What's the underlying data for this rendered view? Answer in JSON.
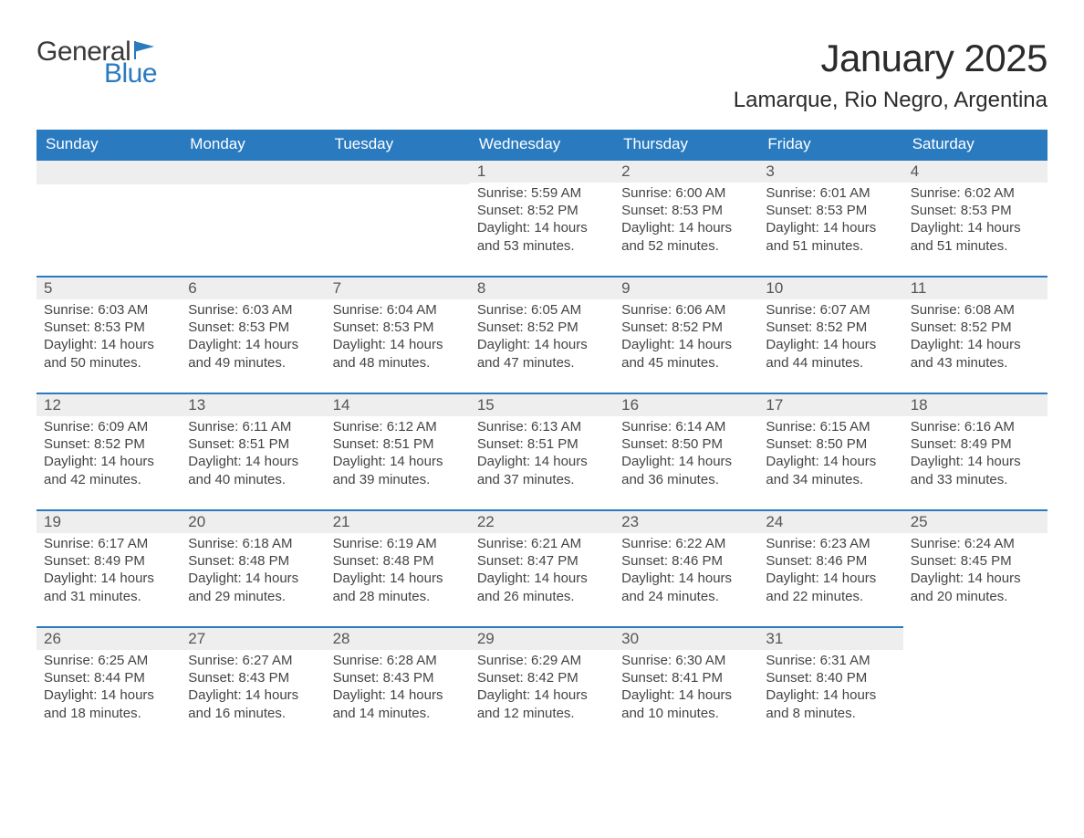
{
  "logo": {
    "text_general": "General",
    "text_blue": "Blue",
    "accent_color": "#2a7ac0"
  },
  "title": "January 2025",
  "location": "Lamarque, Rio Negro, Argentina",
  "colors": {
    "header_bg": "#2a7ac0",
    "header_text": "#ffffff",
    "daynum_bg": "#eeeeee",
    "daynum_border": "#2a7ac0",
    "body_text": "#444444",
    "page_bg": "#ffffff"
  },
  "typography": {
    "title_fontsize": 42,
    "location_fontsize": 24,
    "header_fontsize": 17,
    "daynum_fontsize": 17,
    "body_fontsize": 15
  },
  "weekdays": [
    "Sunday",
    "Monday",
    "Tuesday",
    "Wednesday",
    "Thursday",
    "Friday",
    "Saturday"
  ],
  "weeks": [
    [
      null,
      null,
      null,
      {
        "n": "1",
        "sunrise": "Sunrise: 5:59 AM",
        "sunset": "Sunset: 8:52 PM",
        "daylight": "Daylight: 14 hours and 53 minutes."
      },
      {
        "n": "2",
        "sunrise": "Sunrise: 6:00 AM",
        "sunset": "Sunset: 8:53 PM",
        "daylight": "Daylight: 14 hours and 52 minutes."
      },
      {
        "n": "3",
        "sunrise": "Sunrise: 6:01 AM",
        "sunset": "Sunset: 8:53 PM",
        "daylight": "Daylight: 14 hours and 51 minutes."
      },
      {
        "n": "4",
        "sunrise": "Sunrise: 6:02 AM",
        "sunset": "Sunset: 8:53 PM",
        "daylight": "Daylight: 14 hours and 51 minutes."
      }
    ],
    [
      {
        "n": "5",
        "sunrise": "Sunrise: 6:03 AM",
        "sunset": "Sunset: 8:53 PM",
        "daylight": "Daylight: 14 hours and 50 minutes."
      },
      {
        "n": "6",
        "sunrise": "Sunrise: 6:03 AM",
        "sunset": "Sunset: 8:53 PM",
        "daylight": "Daylight: 14 hours and 49 minutes."
      },
      {
        "n": "7",
        "sunrise": "Sunrise: 6:04 AM",
        "sunset": "Sunset: 8:53 PM",
        "daylight": "Daylight: 14 hours and 48 minutes."
      },
      {
        "n": "8",
        "sunrise": "Sunrise: 6:05 AM",
        "sunset": "Sunset: 8:52 PM",
        "daylight": "Daylight: 14 hours and 47 minutes."
      },
      {
        "n": "9",
        "sunrise": "Sunrise: 6:06 AM",
        "sunset": "Sunset: 8:52 PM",
        "daylight": "Daylight: 14 hours and 45 minutes."
      },
      {
        "n": "10",
        "sunrise": "Sunrise: 6:07 AM",
        "sunset": "Sunset: 8:52 PM",
        "daylight": "Daylight: 14 hours and 44 minutes."
      },
      {
        "n": "11",
        "sunrise": "Sunrise: 6:08 AM",
        "sunset": "Sunset: 8:52 PM",
        "daylight": "Daylight: 14 hours and 43 minutes."
      }
    ],
    [
      {
        "n": "12",
        "sunrise": "Sunrise: 6:09 AM",
        "sunset": "Sunset: 8:52 PM",
        "daylight": "Daylight: 14 hours and 42 minutes."
      },
      {
        "n": "13",
        "sunrise": "Sunrise: 6:11 AM",
        "sunset": "Sunset: 8:51 PM",
        "daylight": "Daylight: 14 hours and 40 minutes."
      },
      {
        "n": "14",
        "sunrise": "Sunrise: 6:12 AM",
        "sunset": "Sunset: 8:51 PM",
        "daylight": "Daylight: 14 hours and 39 minutes."
      },
      {
        "n": "15",
        "sunrise": "Sunrise: 6:13 AM",
        "sunset": "Sunset: 8:51 PM",
        "daylight": "Daylight: 14 hours and 37 minutes."
      },
      {
        "n": "16",
        "sunrise": "Sunrise: 6:14 AM",
        "sunset": "Sunset: 8:50 PM",
        "daylight": "Daylight: 14 hours and 36 minutes."
      },
      {
        "n": "17",
        "sunrise": "Sunrise: 6:15 AM",
        "sunset": "Sunset: 8:50 PM",
        "daylight": "Daylight: 14 hours and 34 minutes."
      },
      {
        "n": "18",
        "sunrise": "Sunrise: 6:16 AM",
        "sunset": "Sunset: 8:49 PM",
        "daylight": "Daylight: 14 hours and 33 minutes."
      }
    ],
    [
      {
        "n": "19",
        "sunrise": "Sunrise: 6:17 AM",
        "sunset": "Sunset: 8:49 PM",
        "daylight": "Daylight: 14 hours and 31 minutes."
      },
      {
        "n": "20",
        "sunrise": "Sunrise: 6:18 AM",
        "sunset": "Sunset: 8:48 PM",
        "daylight": "Daylight: 14 hours and 29 minutes."
      },
      {
        "n": "21",
        "sunrise": "Sunrise: 6:19 AM",
        "sunset": "Sunset: 8:48 PM",
        "daylight": "Daylight: 14 hours and 28 minutes."
      },
      {
        "n": "22",
        "sunrise": "Sunrise: 6:21 AM",
        "sunset": "Sunset: 8:47 PM",
        "daylight": "Daylight: 14 hours and 26 minutes."
      },
      {
        "n": "23",
        "sunrise": "Sunrise: 6:22 AM",
        "sunset": "Sunset: 8:46 PM",
        "daylight": "Daylight: 14 hours and 24 minutes."
      },
      {
        "n": "24",
        "sunrise": "Sunrise: 6:23 AM",
        "sunset": "Sunset: 8:46 PM",
        "daylight": "Daylight: 14 hours and 22 minutes."
      },
      {
        "n": "25",
        "sunrise": "Sunrise: 6:24 AM",
        "sunset": "Sunset: 8:45 PM",
        "daylight": "Daylight: 14 hours and 20 minutes."
      }
    ],
    [
      {
        "n": "26",
        "sunrise": "Sunrise: 6:25 AM",
        "sunset": "Sunset: 8:44 PM",
        "daylight": "Daylight: 14 hours and 18 minutes."
      },
      {
        "n": "27",
        "sunrise": "Sunrise: 6:27 AM",
        "sunset": "Sunset: 8:43 PM",
        "daylight": "Daylight: 14 hours and 16 minutes."
      },
      {
        "n": "28",
        "sunrise": "Sunrise: 6:28 AM",
        "sunset": "Sunset: 8:43 PM",
        "daylight": "Daylight: 14 hours and 14 minutes."
      },
      {
        "n": "29",
        "sunrise": "Sunrise: 6:29 AM",
        "sunset": "Sunset: 8:42 PM",
        "daylight": "Daylight: 14 hours and 12 minutes."
      },
      {
        "n": "30",
        "sunrise": "Sunrise: 6:30 AM",
        "sunset": "Sunset: 8:41 PM",
        "daylight": "Daylight: 14 hours and 10 minutes."
      },
      {
        "n": "31",
        "sunrise": "Sunrise: 6:31 AM",
        "sunset": "Sunset: 8:40 PM",
        "daylight": "Daylight: 14 hours and 8 minutes."
      },
      null
    ]
  ]
}
